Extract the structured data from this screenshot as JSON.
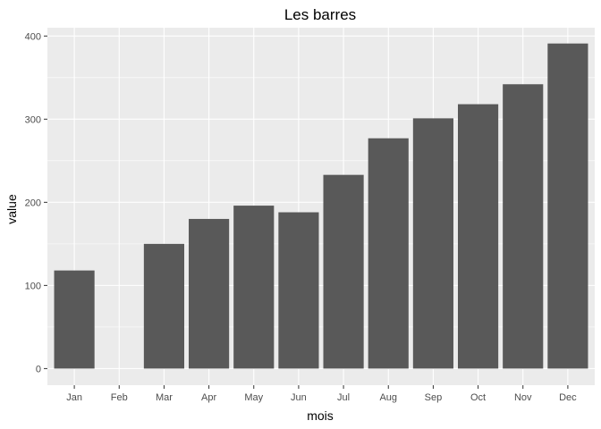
{
  "chart_data": {
    "type": "bar",
    "title": "Les barres",
    "xlabel": "mois",
    "ylabel": "value",
    "categories": [
      "Jan",
      "Feb",
      "Mar",
      "Apr",
      "May",
      "Jun",
      "Jul",
      "Aug",
      "Sep",
      "Oct",
      "Nov",
      "Dec"
    ],
    "values": [
      118,
      0,
      150,
      180,
      196,
      188,
      233,
      277,
      301,
      318,
      342,
      391
    ],
    "yticks": [
      "0",
      "100",
      "200",
      "300",
      "400"
    ],
    "ylim": [
      -20,
      410
    ],
    "grid": true,
    "legend": "none",
    "colors": {
      "bar": "#595959",
      "panel": "#ebebeb",
      "grid": "#ffffff",
      "text": "#4d4d4d"
    }
  }
}
